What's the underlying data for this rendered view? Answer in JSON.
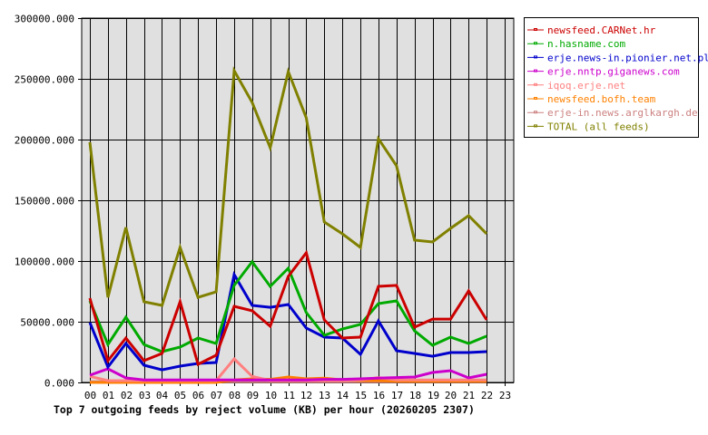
{
  "chart_data": {
    "type": "line",
    "title": "Top 7 outgoing feeds by reject volume (KB) per hour (20260205 2307)",
    "xlabel": "",
    "ylabel": "",
    "ylim": [
      0,
      300000
    ],
    "yticks": [
      "0.000",
      "50000.000",
      "100000.000",
      "150000.000",
      "200000.000",
      "250000.000",
      "300000.000"
    ],
    "categories": [
      "00",
      "01",
      "02",
      "03",
      "04",
      "05",
      "06",
      "07",
      "08",
      "09",
      "10",
      "11",
      "12",
      "13",
      "14",
      "15",
      "16",
      "17",
      "18",
      "19",
      "20",
      "21",
      "22",
      "23"
    ],
    "grid": true,
    "legend_position": "right-top",
    "series": [
      {
        "name": "newsfeed.CARNet.hr",
        "color": "#cc0000",
        "values": [
          69400,
          17900,
          36600,
          17900,
          23900,
          66400,
          14900,
          22400,
          62700,
          59000,
          46300,
          87300,
          106700,
          51500,
          36600,
          37300,
          79100,
          79900,
          45500,
          52200,
          52200,
          75400,
          51500
        ]
      },
      {
        "name": "n.hasname.com",
        "color": "#00aa00",
        "values": [
          67200,
          31300,
          53700,
          31300,
          25400,
          29100,
          36600,
          32100,
          79900,
          99300,
          79100,
          94000,
          57500,
          38800,
          44000,
          47800,
          64900,
          67200,
          42500,
          30600,
          37300,
          32100,
          38100
        ]
      },
      {
        "name": "erje.news-in.pionier.net.pl",
        "color": "#0000cc",
        "values": [
          49300,
          12700,
          32100,
          14200,
          10400,
          13400,
          15700,
          16400,
          88800,
          63400,
          61900,
          64200,
          44800,
          37300,
          36600,
          23100,
          50700,
          26100,
          23900,
          21600,
          24600,
          24600,
          25400
        ]
      },
      {
        "name": "erje.nntp.giganews.com",
        "color": "#cc00cc",
        "values": [
          6000,
          11200,
          3700,
          2000,
          2000,
          2000,
          2000,
          2000,
          2000,
          2000,
          2000,
          2000,
          2000,
          2500,
          2500,
          3000,
          3500,
          4000,
          4500,
          8200,
          9700,
          3700,
          6700
        ]
      },
      {
        "name": "iqoq.erje.net",
        "color": "#ff8080",
        "values": [
          5000,
          1500,
          1500,
          1500,
          1500,
          1500,
          1500,
          1500,
          19400,
          5000,
          1500,
          1500,
          1500,
          1500,
          1500,
          2000,
          4000,
          2000,
          2000,
          2000,
          2000,
          2000,
          2000
        ]
      },
      {
        "name": "newsfeed.bofh.team",
        "color": "#ff8000",
        "values": [
          0,
          0,
          0,
          0,
          0,
          0,
          0,
          0,
          2000,
          3000,
          2500,
          4500,
          3000,
          3500,
          2000,
          1500,
          1500,
          1000,
          1000,
          1000,
          1000,
          1000,
          1000
        ]
      },
      {
        "name": "erje-in.news.arglkargh.de",
        "color": "#cc8080",
        "values": [
          500,
          500,
          500,
          500,
          500,
          500,
          500,
          500,
          500,
          500,
          500,
          500,
          500,
          500,
          500,
          500,
          500,
          500,
          500,
          500,
          500,
          500,
          500
        ]
      },
      {
        "name": "TOTAL (all feeds)",
        "color": "#808000",
        "values": [
          197800,
          70100,
          127600,
          66400,
          63400,
          111200,
          70100,
          74600,
          256700,
          230600,
          193300,
          256000,
          217900,
          132100,
          122400,
          111200,
          200700,
          178400,
          117200,
          115700,
          126900,
          137300,
          122400
        ]
      }
    ]
  }
}
